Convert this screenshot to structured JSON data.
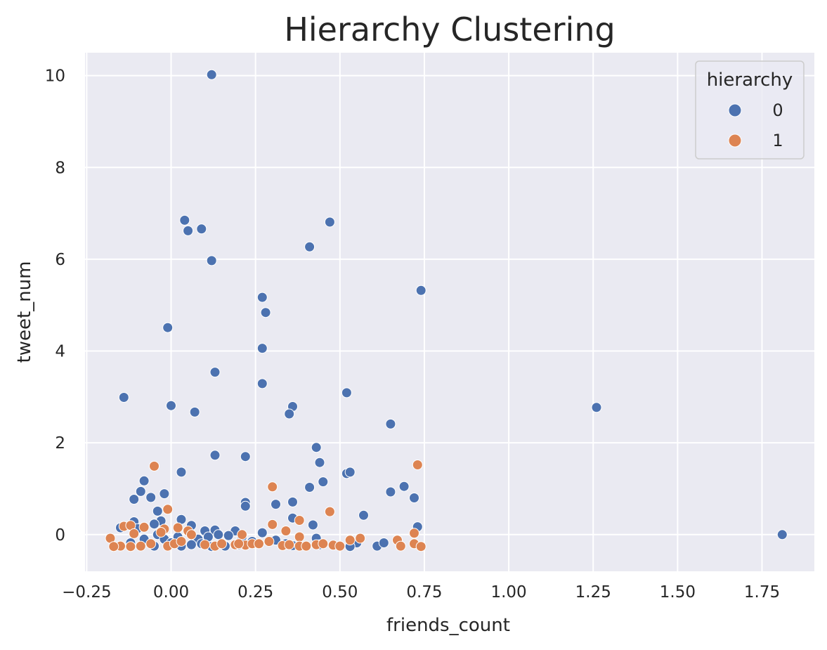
{
  "chart_data": {
    "type": "scatter",
    "title": "Hierarchy Clustering",
    "xlabel": "friends_count",
    "ylabel": "tweet_num",
    "xlim": [
      -0.255,
      1.905
    ],
    "ylim": [
      -0.8,
      10.5
    ],
    "x_ticks": [
      -0.25,
      0.0,
      0.25,
      0.5,
      0.75,
      1.0,
      1.25,
      1.5,
      1.75
    ],
    "x_tick_labels": [
      "−0.25",
      "0.00",
      "0.25",
      "0.50",
      "0.75",
      "1.00",
      "1.25",
      "1.50",
      "1.75"
    ],
    "y_ticks": [
      0,
      2,
      4,
      6,
      8,
      10
    ],
    "y_tick_labels": [
      "0",
      "2",
      "4",
      "6",
      "8",
      "10"
    ],
    "grid": true,
    "background": "#eaeaf2",
    "legend": {
      "title": "hierarchy",
      "position": "top-right"
    },
    "series": [
      {
        "name": "0",
        "color": "#4c72b0",
        "points": [
          [
            0.12,
            10.02
          ],
          [
            0.04,
            6.85
          ],
          [
            0.05,
            6.62
          ],
          [
            0.09,
            6.66
          ],
          [
            0.12,
            5.97
          ],
          [
            0.47,
            6.81
          ],
          [
            0.41,
            6.27
          ],
          [
            0.74,
            5.32
          ],
          [
            0.27,
            5.17
          ],
          [
            0.28,
            4.84
          ],
          [
            -0.01,
            4.51
          ],
          [
            0.27,
            4.06
          ],
          [
            0.13,
            3.54
          ],
          [
            0.27,
            3.29
          ],
          [
            -0.14,
            2.99
          ],
          [
            0.0,
            2.81
          ],
          [
            0.07,
            2.67
          ],
          [
            0.36,
            2.79
          ],
          [
            0.35,
            2.63
          ],
          [
            0.52,
            3.09
          ],
          [
            0.65,
            2.41
          ],
          [
            1.26,
            2.77
          ],
          [
            1.81,
            0.0
          ],
          [
            0.43,
            1.9
          ],
          [
            0.44,
            1.57
          ],
          [
            0.13,
            1.73
          ],
          [
            0.22,
            1.7
          ],
          [
            0.03,
            1.36
          ],
          [
            0.52,
            1.33
          ],
          [
            0.53,
            1.36
          ],
          [
            0.45,
            1.15
          ],
          [
            0.41,
            1.03
          ],
          [
            -0.08,
            1.17
          ],
          [
            -0.09,
            0.94
          ],
          [
            -0.02,
            0.89
          ],
          [
            -0.06,
            0.81
          ],
          [
            -0.11,
            0.77
          ],
          [
            0.65,
            0.93
          ],
          [
            0.69,
            1.05
          ],
          [
            0.72,
            0.8
          ],
          [
            0.22,
            0.7
          ],
          [
            0.22,
            0.62
          ],
          [
            0.31,
            0.66
          ],
          [
            0.36,
            0.71
          ],
          [
            0.57,
            0.42
          ],
          [
            -0.04,
            0.51
          ],
          [
            -0.03,
            0.3
          ],
          [
            0.36,
            0.36
          ],
          [
            0.42,
            0.21
          ],
          [
            0.73,
            0.17
          ],
          [
            -0.11,
            0.28
          ],
          [
            -0.15,
            0.15
          ],
          [
            -0.1,
            0.13
          ],
          [
            0.03,
            0.33
          ],
          [
            0.06,
            0.2
          ],
          [
            0.1,
            0.08
          ],
          [
            0.13,
            0.1
          ],
          [
            0.19,
            0.08
          ],
          [
            0.27,
            0.04
          ],
          [
            -0.05,
            0.23
          ],
          [
            -0.04,
            0.0
          ],
          [
            -0.02,
            -0.1
          ],
          [
            0.02,
            -0.05
          ],
          [
            0.08,
            -0.1
          ],
          [
            0.11,
            -0.05
          ],
          [
            0.14,
            0.0
          ],
          [
            0.17,
            -0.02
          ],
          [
            0.21,
            -0.05
          ],
          [
            0.24,
            -0.15
          ],
          [
            0.31,
            -0.12
          ],
          [
            0.34,
            -0.2
          ],
          [
            0.43,
            -0.08
          ],
          [
            0.55,
            -0.18
          ],
          [
            0.53,
            -0.26
          ],
          [
            0.61,
            -0.25
          ],
          [
            0.63,
            -0.18
          ],
          [
            -0.12,
            -0.18
          ],
          [
            -0.05,
            -0.25
          ],
          [
            0.03,
            -0.25
          ],
          [
            0.06,
            -0.22
          ],
          [
            0.09,
            -0.2
          ],
          [
            0.12,
            -0.26
          ],
          [
            0.16,
            -0.25
          ],
          [
            0.2,
            -0.22
          ],
          [
            0.36,
            -0.24
          ],
          [
            0.44,
            -0.22
          ],
          [
            -0.08,
            -0.1
          ],
          [
            0.0,
            -0.18
          ]
        ]
      },
      {
        "name": "1",
        "color": "#dd8452",
        "points": [
          [
            -0.05,
            1.49
          ],
          [
            0.73,
            1.52
          ],
          [
            0.3,
            1.04
          ],
          [
            0.47,
            0.5
          ],
          [
            -0.01,
            0.55
          ],
          [
            0.38,
            0.31
          ],
          [
            0.3,
            0.22
          ],
          [
            -0.14,
            0.18
          ],
          [
            -0.12,
            0.2
          ],
          [
            -0.08,
            0.16
          ],
          [
            -0.02,
            0.12
          ],
          [
            0.02,
            0.15
          ],
          [
            0.05,
            0.08
          ],
          [
            0.72,
            0.03
          ],
          [
            -0.11,
            0.02
          ],
          [
            -0.03,
            0.05
          ],
          [
            0.06,
            0.0
          ],
          [
            0.21,
            0.0
          ],
          [
            0.34,
            0.08
          ],
          [
            0.38,
            -0.05
          ],
          [
            0.56,
            -0.08
          ],
          [
            0.67,
            -0.12
          ],
          [
            -0.18,
            -0.08
          ],
          [
            -0.15,
            -0.25
          ],
          [
            -0.12,
            -0.26
          ],
          [
            -0.09,
            -0.25
          ],
          [
            -0.06,
            -0.2
          ],
          [
            -0.01,
            -0.25
          ],
          [
            0.01,
            -0.2
          ],
          [
            0.03,
            -0.15
          ],
          [
            0.1,
            -0.22
          ],
          [
            0.13,
            -0.25
          ],
          [
            0.15,
            -0.2
          ],
          [
            0.19,
            -0.22
          ],
          [
            0.22,
            -0.23
          ],
          [
            0.24,
            -0.2
          ],
          [
            0.29,
            -0.15
          ],
          [
            0.33,
            -0.24
          ],
          [
            0.35,
            -0.22
          ],
          [
            0.38,
            -0.25
          ],
          [
            0.4,
            -0.25
          ],
          [
            0.43,
            -0.22
          ],
          [
            0.45,
            -0.2
          ],
          [
            0.48,
            -0.23
          ],
          [
            0.5,
            -0.25
          ],
          [
            0.53,
            -0.12
          ],
          [
            0.68,
            -0.25
          ],
          [
            0.72,
            -0.2
          ],
          [
            0.74,
            -0.26
          ],
          [
            -0.17,
            -0.26
          ],
          [
            0.2,
            -0.2
          ],
          [
            0.26,
            -0.2
          ]
        ]
      }
    ]
  }
}
